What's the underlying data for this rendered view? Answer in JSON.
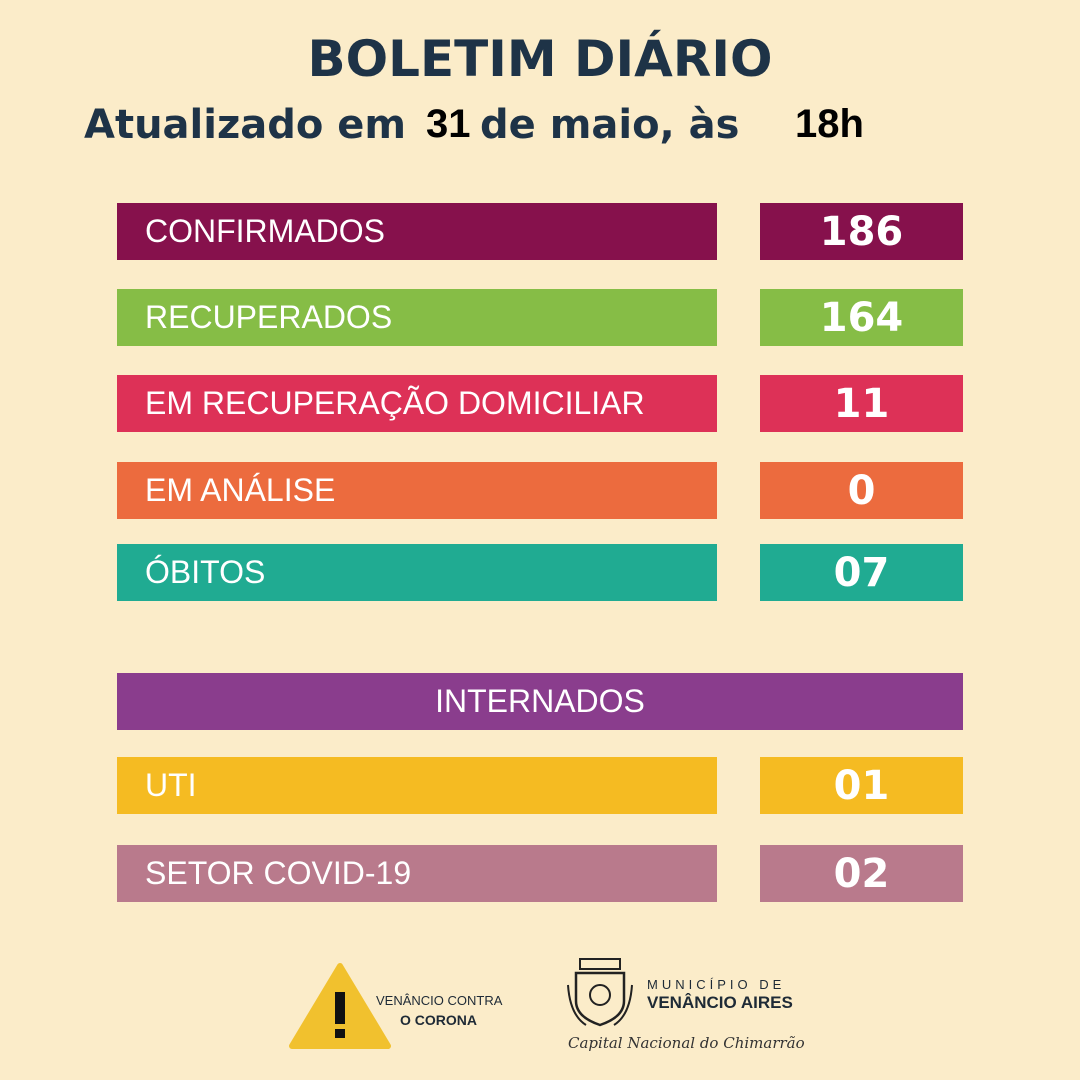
{
  "header": {
    "title": "BOLETIM DIÁRIO",
    "updated_prefix": "Atualizado em",
    "day": "31",
    "month_text": "de maio, às",
    "hour": "18h"
  },
  "rows": [
    {
      "label": "CONFIRMADOS",
      "value": "186",
      "color": "#86114c"
    },
    {
      "label": "RECUPERADOS",
      "value": "164",
      "color": "#86bd46"
    },
    {
      "label": "EM RECUPERAÇÃO DOMICILIAR",
      "value": "11",
      "color": "#dd3157"
    },
    {
      "label": "EM ANÁLISE",
      "value": "0",
      "color": "#ec6b3e"
    },
    {
      "label": "ÓBITOS",
      "value": "07",
      "color": "#20ab92"
    }
  ],
  "hospitalized": {
    "title": "INTERNADOS",
    "color": "#8a3d8d",
    "rows": [
      {
        "label": "UTI",
        "value": "01",
        "color": "#f5bb22"
      },
      {
        "label": "SETOR COVID-19",
        "value": "02",
        "color": "#b97a8c"
      }
    ]
  },
  "footer": {
    "campaign_line1": "VENÂNCIO CONTRA",
    "campaign_line2": "O CORONA",
    "municipality_line1": "MUNICÍPIO DE",
    "municipality_line2": "VENÂNCIO AIRES",
    "slogan": "Capital Nacional do Chimarrão"
  }
}
